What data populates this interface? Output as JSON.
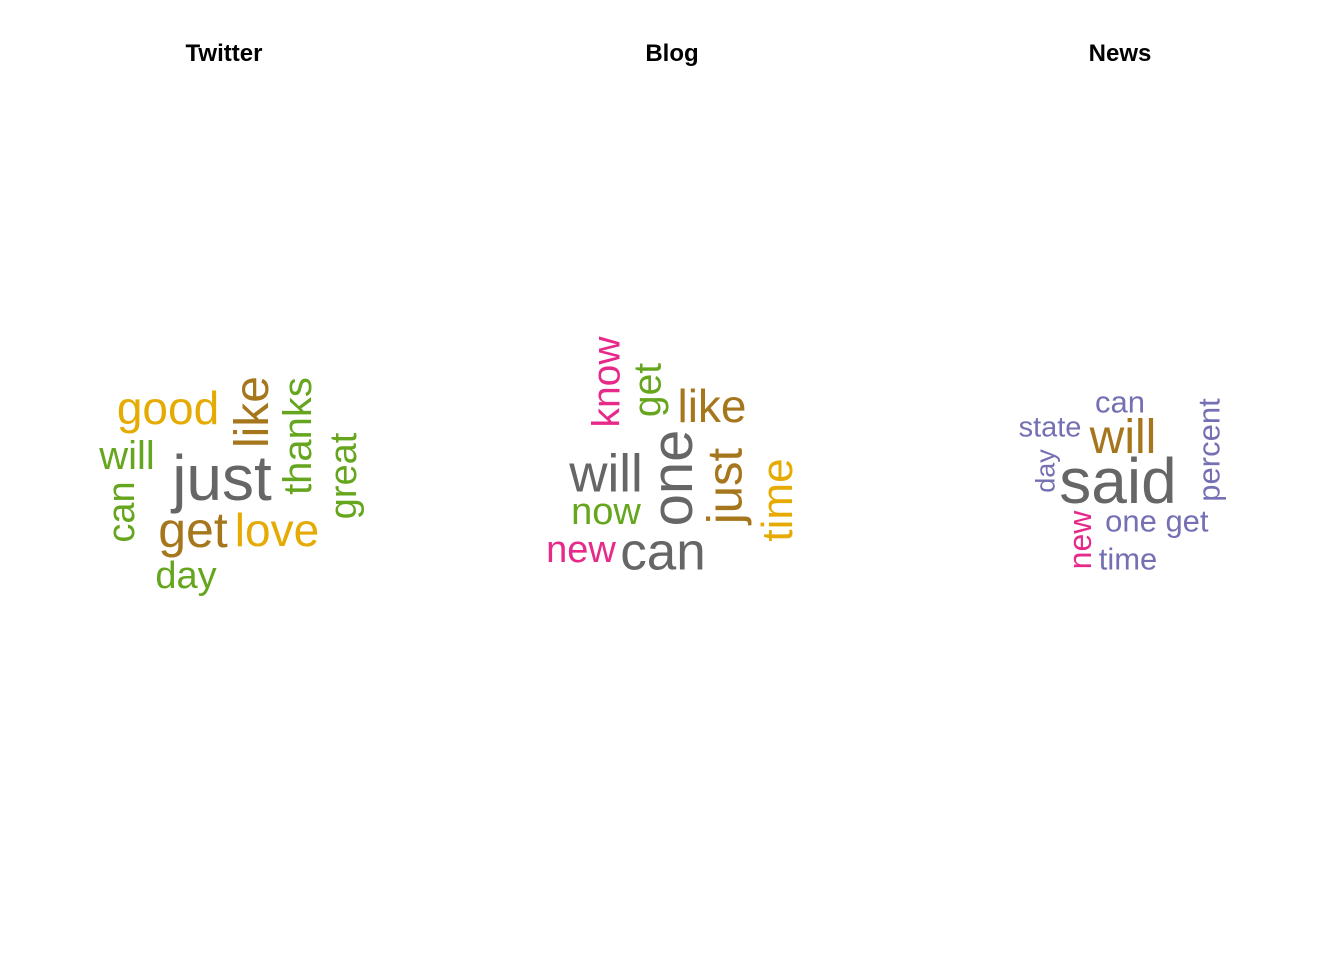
{
  "palette": {
    "dark-gray": "#666666",
    "gold": "#e6ab02",
    "brown": "#a6761d",
    "green": "#66a61e",
    "pink": "#e7298a",
    "purple": "#7570b3"
  },
  "chart_data": [
    {
      "type": "wordcloud",
      "title": "Twitter",
      "words": [
        {
          "text": "just",
          "weight": 1.0,
          "color": "#666666",
          "rotated": false
        },
        {
          "text": "get",
          "weight": 0.78,
          "color": "#a6761d",
          "rotated": false
        },
        {
          "text": "like",
          "weight": 0.75,
          "color": "#a6761d",
          "rotated": true
        },
        {
          "text": "love",
          "weight": 0.72,
          "color": "#e6ab02",
          "rotated": false
        },
        {
          "text": "good",
          "weight": 0.72,
          "color": "#e6ab02",
          "rotated": false
        },
        {
          "text": "thanks",
          "weight": 0.62,
          "color": "#66a61e",
          "rotated": true
        },
        {
          "text": "will",
          "weight": 0.62,
          "color": "#66a61e",
          "rotated": false
        },
        {
          "text": "can",
          "weight": 0.6,
          "color": "#66a61e",
          "rotated": true
        },
        {
          "text": "great",
          "weight": 0.6,
          "color": "#66a61e",
          "rotated": true
        },
        {
          "text": "day",
          "weight": 0.6,
          "color": "#66a61e",
          "rotated": false
        }
      ]
    },
    {
      "type": "wordcloud",
      "title": "Blog",
      "words": [
        {
          "text": "one",
          "weight": 1.0,
          "color": "#666666",
          "rotated": true
        },
        {
          "text": "can",
          "weight": 0.92,
          "color": "#666666",
          "rotated": false
        },
        {
          "text": "will",
          "weight": 0.92,
          "color": "#666666",
          "rotated": false
        },
        {
          "text": "just",
          "weight": 0.85,
          "color": "#a6761d",
          "rotated": true
        },
        {
          "text": "like",
          "weight": 0.8,
          "color": "#a6761d",
          "rotated": false
        },
        {
          "text": "time",
          "weight": 0.75,
          "color": "#e6ab02",
          "rotated": true
        },
        {
          "text": "know",
          "weight": 0.68,
          "color": "#e7298a",
          "rotated": true
        },
        {
          "text": "get",
          "weight": 0.68,
          "color": "#66a61e",
          "rotated": true
        },
        {
          "text": "now",
          "weight": 0.65,
          "color": "#66a61e",
          "rotated": false
        },
        {
          "text": "new",
          "weight": 0.65,
          "color": "#e7298a",
          "rotated": false
        }
      ]
    },
    {
      "type": "wordcloud",
      "title": "News",
      "words": [
        {
          "text": "said",
          "weight": 1.0,
          "color": "#666666",
          "rotated": false
        },
        {
          "text": "will",
          "weight": 0.75,
          "color": "#a6761d",
          "rotated": false
        },
        {
          "text": "new",
          "weight": 0.5,
          "color": "#e7298a",
          "rotated": true
        },
        {
          "text": "can",
          "weight": 0.48,
          "color": "#7570b3",
          "rotated": false
        },
        {
          "text": "one",
          "weight": 0.48,
          "color": "#7570b3",
          "rotated": false
        },
        {
          "text": "get",
          "weight": 0.48,
          "color": "#7570b3",
          "rotated": false
        },
        {
          "text": "percent",
          "weight": 0.48,
          "color": "#7570b3",
          "rotated": true
        },
        {
          "text": "time",
          "weight": 0.48,
          "color": "#7570b3",
          "rotated": false
        },
        {
          "text": "state",
          "weight": 0.45,
          "color": "#7570b3",
          "rotated": false
        },
        {
          "text": "day",
          "weight": 0.42,
          "color": "#7570b3",
          "rotated": true
        }
      ]
    }
  ]
}
